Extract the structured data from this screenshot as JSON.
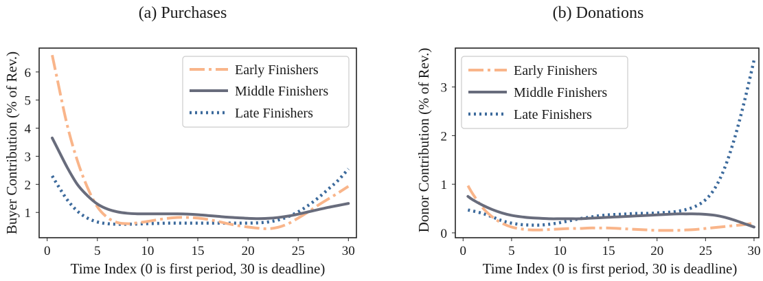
{
  "chart_data": [
    {
      "type": "line",
      "title": "(a) Purchases",
      "xlabel": "Time Index (0 is first period, 30 is deadline)",
      "ylabel": "Buyer Contribution (% of Rev.)",
      "xlim": [
        -0.8,
        30.8
      ],
      "ylim": [
        0.1,
        6.85
      ],
      "x_ticks": [
        0,
        5,
        10,
        15,
        20,
        25,
        30
      ],
      "y_ticks": [
        1,
        2,
        3,
        4,
        5,
        6
      ],
      "grid": false,
      "legend_position": "top-right",
      "series": [
        {
          "name": "Early Finishers",
          "style": "dashdot",
          "color": "#f9b58a",
          "x": [
            0.5,
            1,
            2,
            3,
            4,
            5,
            6,
            7,
            8,
            9,
            10,
            11,
            12,
            13,
            14,
            15,
            16,
            17,
            18,
            19,
            20,
            21,
            22,
            23,
            24,
            25,
            26,
            27,
            28,
            29,
            30
          ],
          "y": [
            6.6,
            5.75,
            4.1,
            2.85,
            1.9,
            1.2,
            0.82,
            0.64,
            0.6,
            0.63,
            0.68,
            0.74,
            0.79,
            0.82,
            0.82,
            0.8,
            0.75,
            0.68,
            0.6,
            0.53,
            0.48,
            0.44,
            0.42,
            0.47,
            0.6,
            0.8,
            1.02,
            1.26,
            1.48,
            1.7,
            1.93
          ]
        },
        {
          "name": "Middle Finishers",
          "style": "solid",
          "color": "#686c7c",
          "x": [
            0.5,
            1,
            2,
            3,
            4,
            5,
            6,
            7,
            8,
            9,
            10,
            11,
            12,
            13,
            14,
            15,
            16,
            17,
            18,
            19,
            20,
            21,
            22,
            23,
            24,
            25,
            26,
            27,
            28,
            29,
            30
          ],
          "y": [
            3.65,
            3.3,
            2.6,
            2.0,
            1.6,
            1.3,
            1.12,
            1.02,
            0.97,
            0.95,
            0.95,
            0.95,
            0.95,
            0.95,
            0.94,
            0.92,
            0.89,
            0.86,
            0.83,
            0.81,
            0.79,
            0.78,
            0.79,
            0.82,
            0.87,
            0.94,
            1.02,
            1.1,
            1.18,
            1.25,
            1.32
          ]
        },
        {
          "name": "Late Finishers",
          "style": "dotted",
          "color": "#3c6a9c",
          "x": [
            0.5,
            1,
            2,
            3,
            4,
            5,
            6,
            7,
            8,
            9,
            10,
            11,
            12,
            13,
            14,
            15,
            16,
            17,
            18,
            19,
            20,
            21,
            22,
            23,
            24,
            25,
            26,
            27,
            28,
            29,
            30
          ],
          "y": [
            2.3,
            2.0,
            1.45,
            1.05,
            0.8,
            0.66,
            0.6,
            0.58,
            0.58,
            0.59,
            0.6,
            0.61,
            0.62,
            0.62,
            0.62,
            0.62,
            0.62,
            0.62,
            0.62,
            0.62,
            0.62,
            0.63,
            0.66,
            0.73,
            0.85,
            1.02,
            1.25,
            1.52,
            1.83,
            2.15,
            2.55
          ]
        }
      ]
    },
    {
      "type": "line",
      "title": "(b) Donations",
      "xlabel": "Time Index (0 is first period, 30 is deadline)",
      "ylabel": "Donor Contribution (% of Rev.)",
      "xlim": [
        -0.8,
        30.5
      ],
      "ylim": [
        -0.1,
        3.8
      ],
      "x_ticks": [
        0,
        5,
        10,
        15,
        20,
        25,
        30
      ],
      "y_ticks": [
        0,
        1,
        2,
        3
      ],
      "grid": false,
      "legend_position": "top-left",
      "series": [
        {
          "name": "Early Finishers",
          "style": "dashdot",
          "color": "#f9b58a",
          "x": [
            0.5,
            1,
            2,
            3,
            4,
            5,
            6,
            7,
            8,
            9,
            10,
            11,
            12,
            13,
            14,
            15,
            16,
            17,
            18,
            19,
            20,
            21,
            22,
            23,
            24,
            25,
            26,
            27,
            28,
            29,
            30
          ],
          "y": [
            0.97,
            0.8,
            0.52,
            0.33,
            0.2,
            0.12,
            0.08,
            0.06,
            0.06,
            0.07,
            0.08,
            0.09,
            0.09,
            0.1,
            0.1,
            0.1,
            0.09,
            0.08,
            0.07,
            0.06,
            0.05,
            0.05,
            0.05,
            0.06,
            0.07,
            0.09,
            0.11,
            0.13,
            0.15,
            0.17,
            0.2
          ]
        },
        {
          "name": "Middle Finishers",
          "style": "solid",
          "color": "#686c7c",
          "x": [
            0.5,
            1,
            2,
            3,
            4,
            5,
            6,
            7,
            8,
            9,
            10,
            11,
            12,
            13,
            14,
            15,
            16,
            17,
            18,
            19,
            20,
            21,
            22,
            23,
            24,
            25,
            26,
            27,
            28,
            29,
            30
          ],
          "y": [
            0.75,
            0.68,
            0.57,
            0.48,
            0.41,
            0.36,
            0.33,
            0.31,
            0.3,
            0.29,
            0.29,
            0.29,
            0.29,
            0.3,
            0.31,
            0.32,
            0.33,
            0.34,
            0.35,
            0.36,
            0.37,
            0.38,
            0.39,
            0.39,
            0.39,
            0.38,
            0.36,
            0.32,
            0.26,
            0.19,
            0.12
          ]
        },
        {
          "name": "Late Finishers",
          "style": "dotted",
          "color": "#3c6a9c",
          "x": [
            0.5,
            1,
            2,
            3,
            4,
            5,
            6,
            7,
            8,
            9,
            10,
            11,
            12,
            13,
            14,
            15,
            16,
            17,
            18,
            19,
            20,
            21,
            22,
            23,
            24,
            25,
            26,
            27,
            28,
            29,
            30
          ],
          "y": [
            0.47,
            0.45,
            0.4,
            0.33,
            0.25,
            0.2,
            0.17,
            0.16,
            0.16,
            0.18,
            0.21,
            0.25,
            0.29,
            0.32,
            0.35,
            0.37,
            0.38,
            0.39,
            0.4,
            0.4,
            0.41,
            0.42,
            0.44,
            0.48,
            0.55,
            0.68,
            0.93,
            1.35,
            1.95,
            2.7,
            3.55
          ]
        }
      ]
    }
  ]
}
